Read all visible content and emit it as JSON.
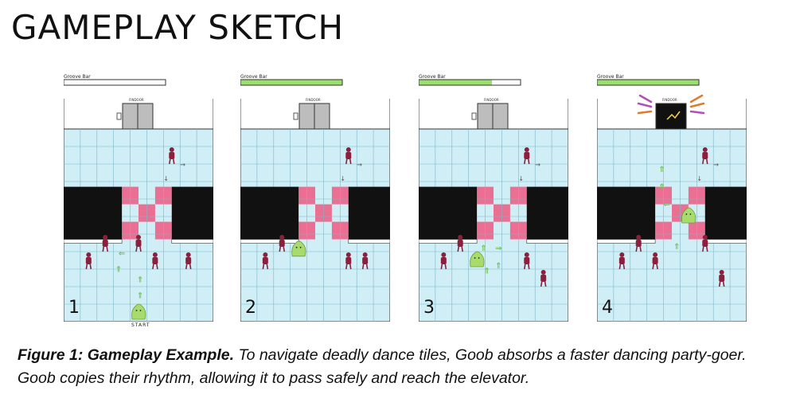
{
  "title": "GAMEPLAY SKETCH",
  "bar_label": "Groove Bar",
  "door_label": "FINDOOR",
  "start_label": "START",
  "panels": [
    {
      "number": "1",
      "groove_fill": 0.0
    },
    {
      "number": "2",
      "groove_fill": 1.0
    },
    {
      "number": "3",
      "groove_fill": 0.72
    },
    {
      "number": "4",
      "groove_fill": 1.0
    }
  ],
  "caption": {
    "bold": "Figure 1: Gameplay Example.",
    "text": " To navigate deadly dance tiles, Goob absorbs a faster dancing party-goer. Goob copies their rhythm, allowing it to pass safely and reach the elevator."
  },
  "colors": {
    "tile": "#cfeef6",
    "grid": "#7fb7c9",
    "pit": "#111111",
    "pink": "#ea6f92",
    "goob": "#a7dc6c",
    "dancer": "#8e1f3c",
    "groove": "#9be06b",
    "arrow": "#6cc44b"
  }
}
